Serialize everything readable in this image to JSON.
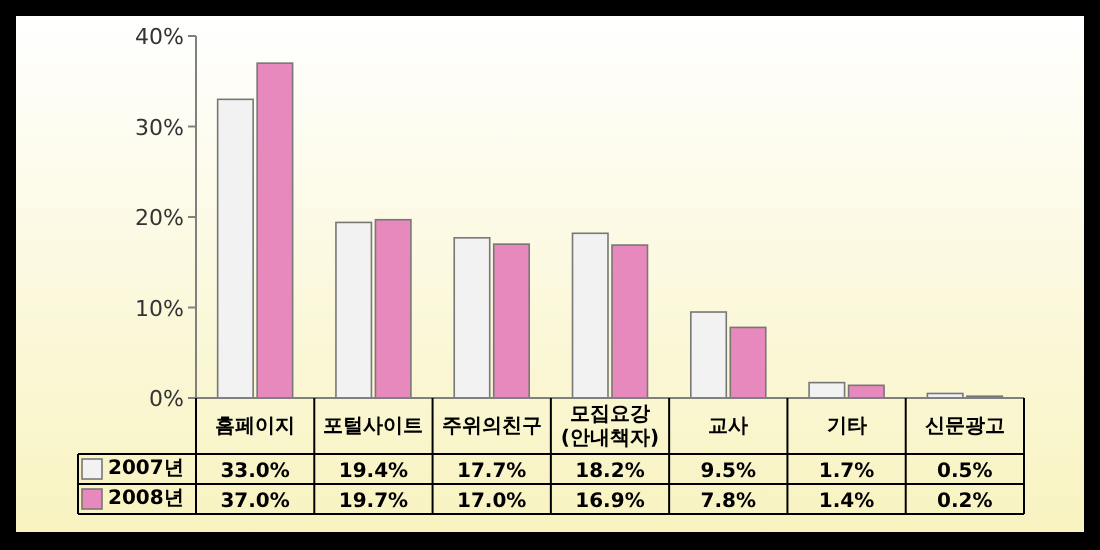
{
  "chart_data": {
    "type": "bar",
    "categories": [
      "홈페이지",
      "포털사이트",
      "주위의친구",
      "모집요강(안내책자)",
      "교사",
      "기타",
      "신문광고"
    ],
    "series": [
      {
        "name": "2007년",
        "color": "#f2f2f2",
        "values": [
          33.0,
          19.4,
          17.7,
          18.2,
          9.5,
          1.7,
          0.5
        ],
        "value_labels": [
          "33.0%",
          "19.4%",
          "17.7%",
          "18.2%",
          "9.5%",
          "1.7%",
          "0.5%"
        ]
      },
      {
        "name": "2008년",
        "color": "#e889bd",
        "values": [
          37.0,
          19.7,
          17.0,
          16.9,
          7.8,
          1.4,
          0.2
        ],
        "value_labels": [
          "37.0%",
          "19.7%",
          "17.0%",
          "16.9%",
          "7.8%",
          "1.4%",
          "0.2%"
        ]
      }
    ],
    "ylim": [
      0,
      40
    ],
    "yticks": [
      {
        "value": 0,
        "label": "0%"
      },
      {
        "value": 10,
        "label": "10%"
      },
      {
        "value": 20,
        "label": "20%"
      },
      {
        "value": 30,
        "label": "30%"
      },
      {
        "value": 40,
        "label": "40%"
      }
    ],
    "legend": "bottom"
  }
}
